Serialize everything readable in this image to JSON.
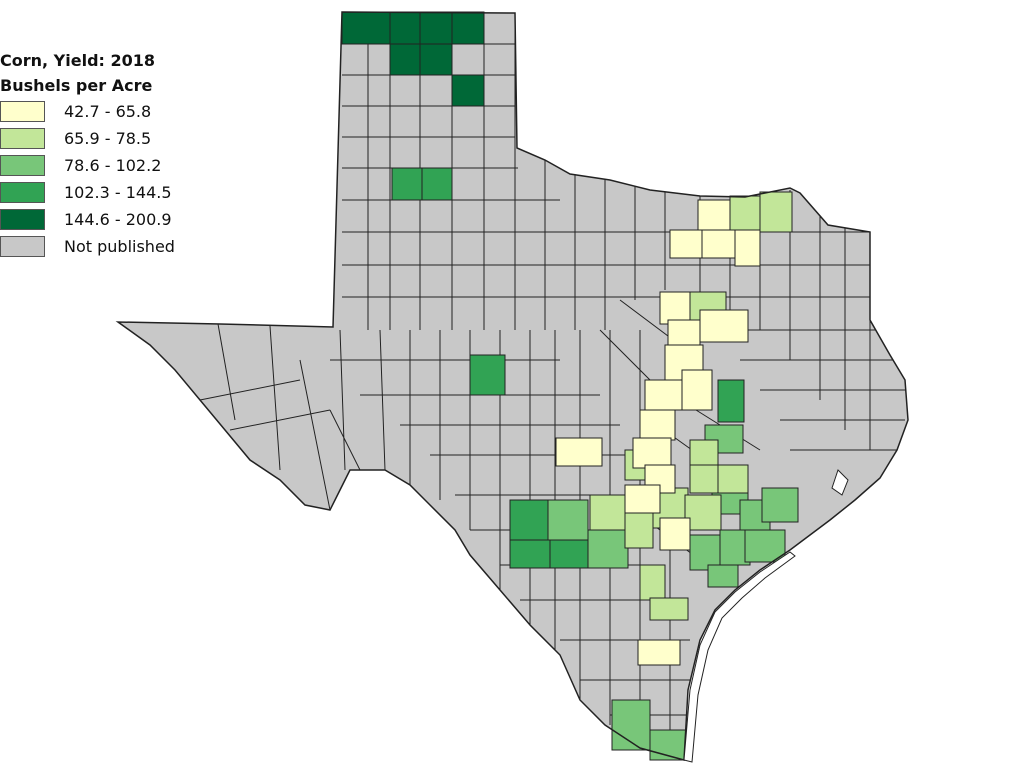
{
  "legend": {
    "title": "Corn, Yield: 2018",
    "subtitle": "Bushels per Acre",
    "classes": [
      {
        "label": "42.7 - 65.8",
        "color": "#FFFFCC"
      },
      {
        "label": "65.9 - 78.5",
        "color": "#C2E699"
      },
      {
        "label": "78.6 - 102.2",
        "color": "#78C679"
      },
      {
        "label": "102.3 - 144.5",
        "color": "#31A354"
      },
      {
        "label": "144.6 - 200.9",
        "color": "#006837"
      },
      {
        "label": "Not published",
        "color": "#C8C8C8"
      }
    ]
  },
  "colors": {
    "county_border": "#222222",
    "water": "#FFFFFF"
  }
}
